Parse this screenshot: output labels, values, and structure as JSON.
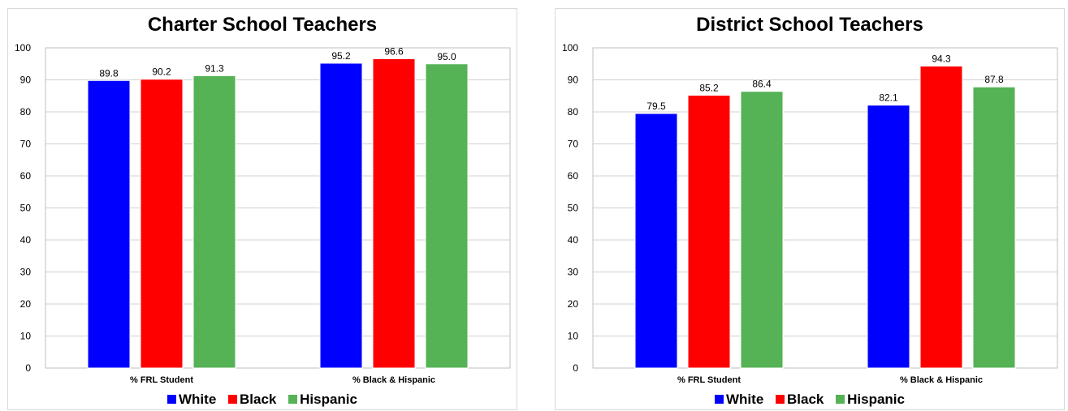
{
  "chart_data": [
    {
      "type": "bar",
      "title": "Charter School Teachers",
      "categories": [
        "% FRL Student",
        "% Black & Hispanic"
      ],
      "series": [
        {
          "name": "White",
          "color": "#0000ff",
          "values": [
            89.8,
            95.2
          ]
        },
        {
          "name": "Black",
          "color": "#ff0000",
          "values": [
            90.2,
            96.6
          ]
        },
        {
          "name": "Hispanic",
          "color": "#55b255",
          "values": [
            91.3,
            95.0
          ]
        }
      ],
      "ylim": [
        0,
        100
      ],
      "yticks": [
        0,
        10,
        20,
        30,
        40,
        50,
        60,
        70,
        80,
        90,
        100
      ],
      "grid": true,
      "legend_position": "bottom",
      "value_labels": [
        "89.8",
        "95.2",
        "90.2",
        "96.6",
        "91.3",
        "95.0"
      ]
    },
    {
      "type": "bar",
      "title": "District School Teachers",
      "categories": [
        "% FRL Student",
        "% Black & Hispanic"
      ],
      "series": [
        {
          "name": "White",
          "color": "#0000ff",
          "values": [
            79.5,
            82.1
          ]
        },
        {
          "name": "Black",
          "color": "#ff0000",
          "values": [
            85.2,
            94.3
          ]
        },
        {
          "name": "Hispanic",
          "color": "#55b255",
          "values": [
            86.4,
            87.8
          ]
        }
      ],
      "ylim": [
        0,
        100
      ],
      "yticks": [
        0,
        10,
        20,
        30,
        40,
        50,
        60,
        70,
        80,
        90,
        100
      ],
      "grid": true,
      "legend_position": "bottom",
      "value_labels": [
        "79.5",
        "82.1",
        "85.2",
        "94.3",
        "86.4",
        "87.8"
      ]
    }
  ]
}
